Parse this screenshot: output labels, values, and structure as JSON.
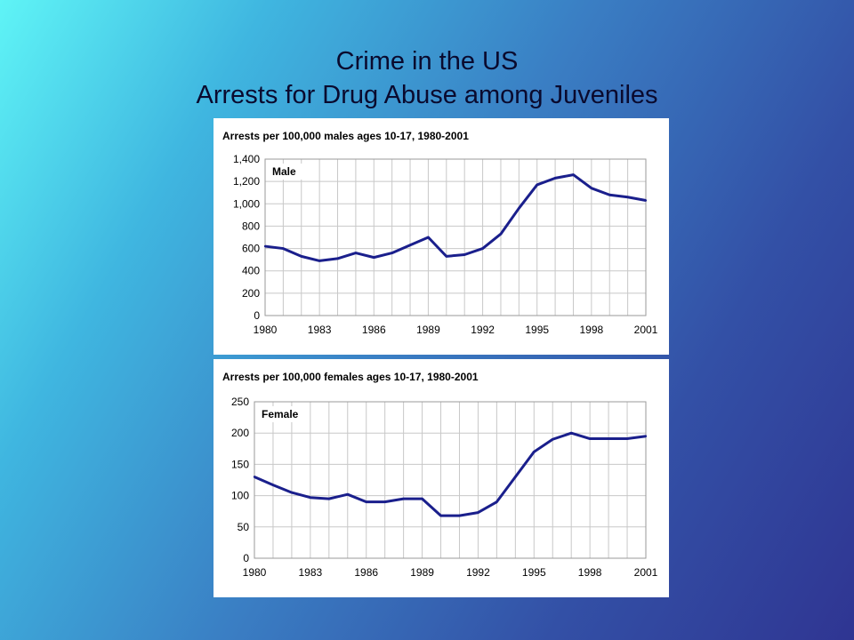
{
  "slide": {
    "title_line1": "Crime in the US",
    "title_line2": "Arrests for Drug Abuse among Juveniles"
  },
  "colors": {
    "line": "#1a1f8c",
    "grid": "#c8c8c8",
    "text": "#000000",
    "panel": "#ffffff"
  },
  "chart_data": [
    {
      "type": "line",
      "title": "Arrests per 100,000 males ages 10-17, 1980-2001",
      "series": [
        {
          "name": "Male",
          "values": [
            620,
            600,
            530,
            490,
            510,
            560,
            520,
            560,
            630,
            700,
            530,
            545,
            600,
            730,
            960,
            1170,
            1230,
            1260,
            1140,
            1080,
            1060,
            1030
          ]
        }
      ],
      "x": [
        1980,
        1981,
        1982,
        1983,
        1984,
        1985,
        1986,
        1987,
        1988,
        1989,
        1990,
        1991,
        1992,
        1993,
        1994,
        1995,
        1996,
        1997,
        1998,
        1999,
        2000,
        2001
      ],
      "x_ticks": [
        "1980",
        "1983",
        "1986",
        "1989",
        "1992",
        "1995",
        "1998",
        "2001"
      ],
      "y_ticks": [
        "0",
        "200",
        "400",
        "600",
        "800",
        "1,000",
        "1,200",
        "1,400"
      ],
      "ylim": [
        0,
        1400
      ],
      "xlabel": "",
      "ylabel": "",
      "grid": true,
      "legend": "top-left"
    },
    {
      "type": "line",
      "title": "Arrests per 100,000 females ages 10-17, 1980-2001",
      "series": [
        {
          "name": "Female",
          "values": [
            130,
            117,
            105,
            97,
            95,
            102,
            90,
            90,
            95,
            95,
            68,
            68,
            73,
            90,
            130,
            170,
            190,
            200,
            191,
            191,
            191,
            195
          ]
        }
      ],
      "x": [
        1980,
        1981,
        1982,
        1983,
        1984,
        1985,
        1986,
        1987,
        1988,
        1989,
        1990,
        1991,
        1992,
        1993,
        1994,
        1995,
        1996,
        1997,
        1998,
        1999,
        2000,
        2001
      ],
      "x_ticks": [
        "1980",
        "1983",
        "1986",
        "1989",
        "1992",
        "1995",
        "1998",
        "2001"
      ],
      "y_ticks": [
        "0",
        "50",
        "100",
        "150",
        "200",
        "250"
      ],
      "ylim": [
        0,
        250
      ],
      "xlabel": "",
      "ylabel": "",
      "grid": true,
      "legend": "top-left"
    }
  ]
}
